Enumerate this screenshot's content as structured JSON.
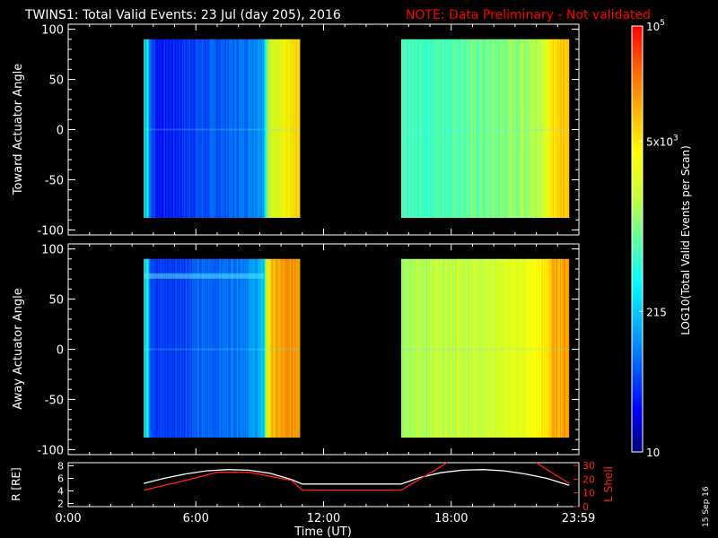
{
  "header": {
    "title": "TWINS1: Total Valid Events: 23 Jul (day 205), 2016",
    "note": "NOTE: Data Preliminary - Not validated"
  },
  "footer": {
    "date_stamp": "15 Sep 16"
  },
  "colors": {
    "background": "#000000",
    "text": "#ffffff",
    "note": "#ff0000",
    "r_line": "#ffffff",
    "l_shell": "#ff2020"
  },
  "chart_data": [
    {
      "type": "heatmap",
      "panel": "toward",
      "ylabel": "Toward Actuator Angle",
      "yticks": [
        "100",
        "50",
        "0",
        "-50",
        "-100"
      ],
      "ylim": [
        -105,
        105
      ],
      "xlim": [
        0,
        24
      ],
      "data_blocks": [
        {
          "t_start": 3.55,
          "t_end": 10.9,
          "angle_range": [
            -88,
            90
          ],
          "profile": [
            [
              3.55,
              0.58
            ],
            [
              3.62,
              0.28
            ],
            [
              3.72,
              0.44
            ],
            [
              3.85,
              0.2
            ],
            [
              4.2,
              0.13
            ],
            [
              5.0,
              0.14
            ],
            [
              6.0,
              0.18
            ],
            [
              7.2,
              0.2
            ],
            [
              8.5,
              0.24
            ],
            [
              9.2,
              0.3
            ],
            [
              9.35,
              0.55
            ],
            [
              9.6,
              0.64
            ],
            [
              10.2,
              0.7
            ],
            [
              10.9,
              0.74
            ]
          ]
        },
        {
          "t_start": 15.65,
          "t_end": 23.55,
          "angle_range": [
            -88,
            90
          ],
          "profile": [
            [
              15.65,
              0.46
            ],
            [
              17.0,
              0.47
            ],
            [
              18.5,
              0.5
            ],
            [
              20.0,
              0.52
            ],
            [
              21.5,
              0.56
            ],
            [
              22.4,
              0.62
            ],
            [
              22.8,
              0.74
            ],
            [
              23.55,
              0.8
            ]
          ]
        }
      ]
    },
    {
      "type": "heatmap",
      "panel": "away",
      "ylabel": "Away Actuator Angle",
      "yticks": [
        "100",
        "50",
        "0",
        "-50",
        "-100"
      ],
      "ylim": [
        -105,
        105
      ],
      "xlim": [
        0,
        24
      ],
      "data_blocks": [
        {
          "t_start": 3.55,
          "t_end": 10.9,
          "angle_range": [
            -88,
            90
          ],
          "profile": [
            [
              3.55,
              0.58
            ],
            [
              3.62,
              0.3
            ],
            [
              3.72,
              0.44
            ],
            [
              3.85,
              0.22
            ],
            [
              4.2,
              0.16
            ],
            [
              5.0,
              0.17
            ],
            [
              6.0,
              0.2
            ],
            [
              7.2,
              0.22
            ],
            [
              8.5,
              0.26
            ],
            [
              9.2,
              0.32
            ],
            [
              9.35,
              0.7
            ],
            [
              9.6,
              0.78
            ],
            [
              10.2,
              0.82
            ],
            [
              10.9,
              0.84
            ]
          ]
        },
        {
          "t_start": 15.65,
          "t_end": 23.55,
          "angle_range": [
            -88,
            90
          ],
          "profile": [
            [
              15.65,
              0.58
            ],
            [
              17.0,
              0.58
            ],
            [
              18.5,
              0.6
            ],
            [
              20.0,
              0.62
            ],
            [
              21.5,
              0.66
            ],
            [
              22.4,
              0.72
            ],
            [
              22.8,
              0.8
            ],
            [
              23.55,
              0.84
            ]
          ]
        }
      ]
    },
    {
      "type": "line",
      "panel": "orbit",
      "ylabel": "R [RE]",
      "y2label": "L Shell",
      "yticks": [
        "8",
        "6",
        "4",
        "2"
      ],
      "y2ticks": [
        "30",
        "20",
        "10",
        "0"
      ],
      "ylim": [
        1.5,
        8.5
      ],
      "y2lim": [
        0,
        32
      ],
      "series": [
        {
          "axis": "left",
          "color": "#ffffff",
          "x": [
            3.55,
            4.5,
            5.5,
            6.5,
            7.5,
            8.5,
            9.5,
            10.5,
            11.0,
            12.0,
            13.0,
            14.0,
            15.0,
            15.65,
            16.5,
            17.5,
            18.5,
            19.5,
            20.5,
            21.5,
            22.5,
            23.55
          ],
          "y": [
            5.2,
            6.0,
            6.7,
            7.2,
            7.4,
            7.3,
            6.8,
            5.8,
            5.1,
            5.1,
            5.1,
            5.1,
            5.1,
            5.1,
            6.1,
            6.9,
            7.3,
            7.4,
            7.2,
            6.7,
            6.0,
            4.9
          ]
        },
        {
          "axis": "right",
          "color": "#ff2020",
          "x": [
            3.55,
            5.5,
            7.0,
            8.5,
            10.5,
            11.0,
            15.65,
            17.4,
            17.8
          ],
          "y": [
            12,
            19,
            25,
            25,
            19,
            12,
            12,
            28,
            32
          ]
        },
        {
          "axis": "right",
          "color": "#ff2020",
          "x": [
            22.0,
            22.8,
            23.55
          ],
          "y": [
            32,
            24,
            17
          ]
        }
      ]
    }
  ],
  "time_axis": {
    "labels": [
      "0:00",
      "6:00",
      "12:00",
      "18:00",
      "23:59"
    ],
    "title": "Time (UT)"
  },
  "colorbar": {
    "title": "LOG10(Total Valid Events per Scan)",
    "labels": [
      {
        "text": "10",
        "sup": "5",
        "frac": 1.0
      },
      {
        "text": "5x10",
        "sup": "3",
        "frac": 0.73
      },
      {
        "text": "215",
        "sup": "",
        "frac": 0.33
      },
      {
        "text": "10",
        "sup": "",
        "frac": 0.0
      }
    ],
    "stops": [
      "#00007f",
      "#0000ff",
      "#0060ff",
      "#00b4ff",
      "#00ffff",
      "#60ff9f",
      "#c8ff37",
      "#ffff00",
      "#ffb400",
      "#ff6400",
      "#ff0000"
    ]
  }
}
